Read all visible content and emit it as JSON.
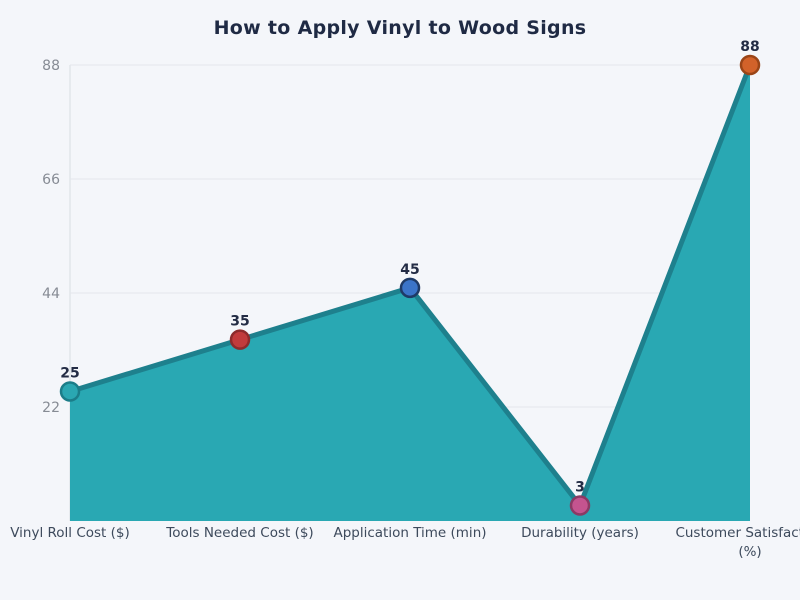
{
  "chart_data": {
    "type": "area",
    "title": "How to Apply Vinyl to Wood Signs",
    "categories": [
      "Vinyl Roll Cost ($)",
      "Tools Needed Cost ($)",
      "Application Time (min)",
      "Durability (years)",
      "Customer Satisfaction (%)"
    ],
    "values": [
      25,
      35,
      45,
      3,
      88
    ],
    "data_labels": [
      "25",
      "35",
      "45",
      "3",
      "88"
    ],
    "yticks": [
      22,
      44,
      66,
      88
    ],
    "ylim": [
      0,
      88
    ],
    "grid": true,
    "legend": "none",
    "colors": {
      "background": "#f4f6fa",
      "area_fill": "#29a8b3",
      "line": "#1e808d",
      "marker_fills": [
        "#2aa7b2",
        "#c13b3c",
        "#3b74c9",
        "#c4548f",
        "#d2622a"
      ],
      "marker_strokes": [
        "#1b7d89",
        "#8c2b2c",
        "#1f3a66",
        "#8a3a64",
        "#9a4517"
      ],
      "title": "#1f2a44",
      "tick_label": "#868b94",
      "category_label": "#3d4a5c",
      "data_label": "#232c45",
      "gridline": "#e4e7ec",
      "axis_line": "#d9dde3"
    }
  }
}
